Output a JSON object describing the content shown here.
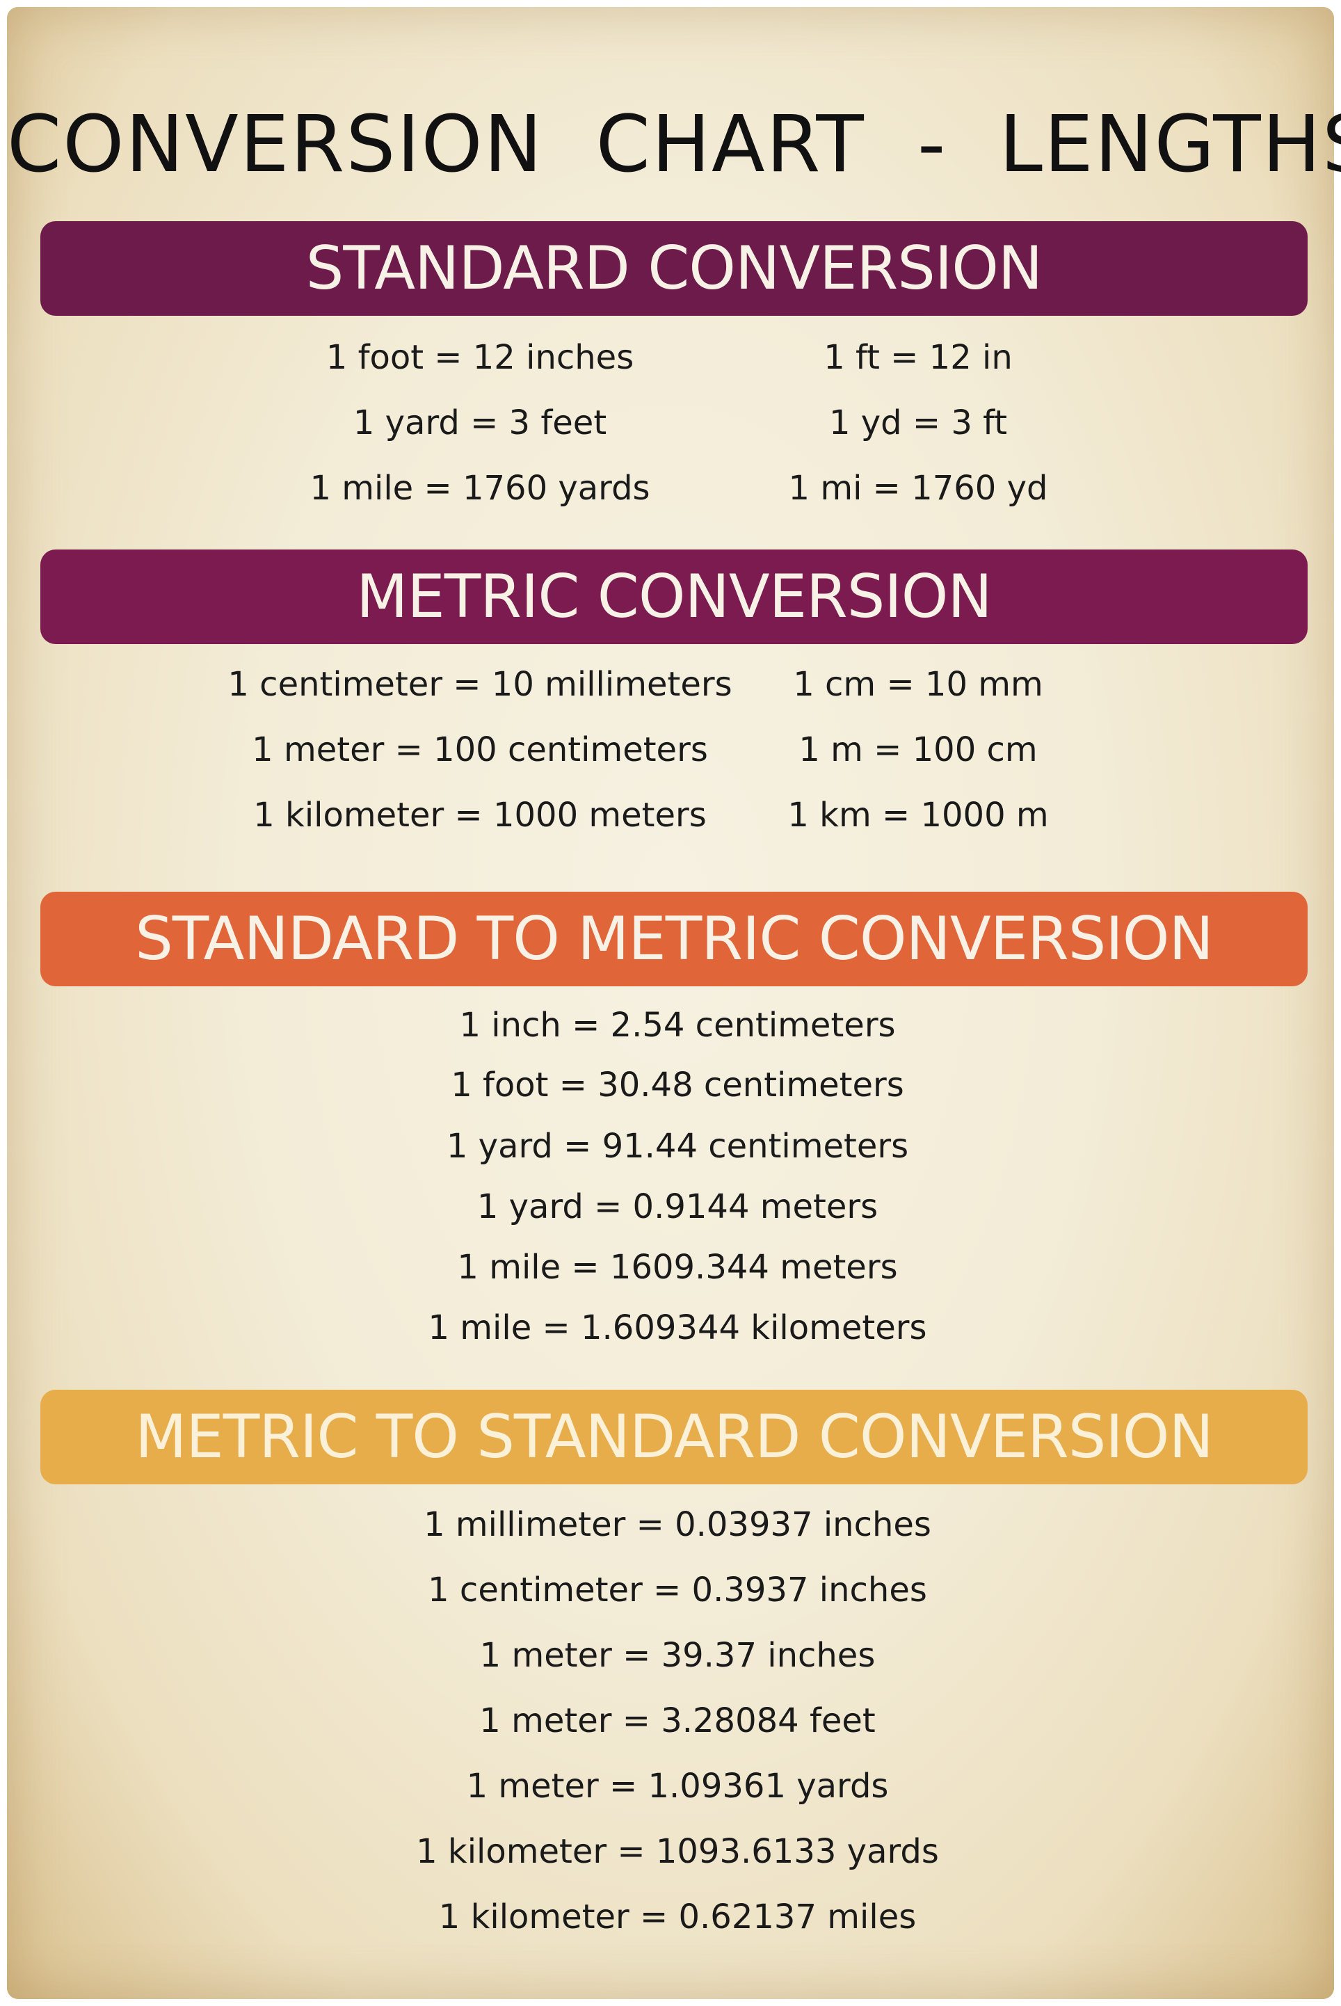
{
  "title": "CONVERSION  CHART  -  LENGTHS",
  "colors": {
    "standard": "#6c1b4b",
    "metric": "#7c1b50",
    "standard_to_metric": "#e0663a",
    "metric_to_standard": "#e7ad4a",
    "background": "#f3ecd7"
  },
  "standard": {
    "heading": "STANDARD CONVERSION",
    "rows": [
      {
        "long": "1 foot = 12 inches",
        "short": "1 ft = 12 in"
      },
      {
        "long": "1 yard = 3 feet",
        "short": "1 yd = 3 ft"
      },
      {
        "long": "1 mile = 1760 yards",
        "short": "1 mi = 1760 yd"
      }
    ]
  },
  "metric": {
    "heading": "METRIC CONVERSION",
    "rows": [
      {
        "long": "1 centimeter = 10 millimeters",
        "short": "1 cm = 10 mm"
      },
      {
        "long": "1 meter = 100 centimeters",
        "short": "1 m = 100 cm"
      },
      {
        "long": "1 kilometer = 1000 meters",
        "short": "1 km = 1000 m"
      }
    ]
  },
  "standard_to_metric": {
    "heading": "STANDARD TO METRIC CONVERSION",
    "rows": [
      "1 inch = 2.54 centimeters",
      "1 foot = 30.48 centimeters",
      "1 yard = 91.44 centimeters",
      "1 yard = 0.9144 meters",
      "1 mile = 1609.344 meters",
      "1 mile = 1.609344 kilometers"
    ]
  },
  "metric_to_standard": {
    "heading": "METRIC TO STANDARD CONVERSION",
    "rows": [
      "1 millimeter = 0.03937 inches",
      "1 centimeter = 0.3937 inches",
      "1 meter = 39.37 inches",
      "1 meter = 3.28084 feet",
      "1 meter = 1.09361 yards",
      "1 kilometer = 1093.6133 yards",
      "1 kilometer = 0.62137 miles"
    ]
  }
}
